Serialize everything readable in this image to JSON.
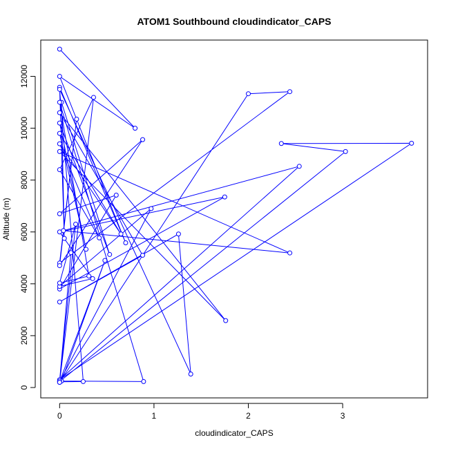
{
  "chart_data": {
    "type": "line",
    "title": "ATOM1 Southbound cloudindicator_CAPS",
    "xlabel": "cloudindicator_CAPS",
    "ylabel": "Altitude (m)",
    "xlim": [
      -0.2,
      3.9
    ],
    "ylim": [
      -400,
      13400
    ],
    "xticks": [
      0,
      1,
      2,
      3
    ],
    "yticks": [
      0,
      2000,
      4000,
      6000,
      8000,
      10000,
      12000
    ],
    "series_color": "#0000ff",
    "series": [
      {
        "marker": "open-circle",
        "x": [
          0.0,
          0.8,
          0.0,
          0.7,
          0.0,
          0.05,
          0.02,
          0.53,
          0.0,
          0.28,
          0.0,
          0.65,
          0.0,
          0.42,
          0.0,
          0.36,
          0.0,
          2.0,
          2.44,
          0.0,
          0.18,
          0.0,
          0.88,
          0.0,
          0.6,
          0.0,
          1.75,
          0.0,
          0.35,
          0.0,
          0.97,
          0.0,
          3.03,
          2.35,
          3.73,
          0.0,
          2.54,
          0.04,
          2.44,
          0.0,
          1.76,
          0.0,
          0.88,
          0.0,
          1.26,
          1.39,
          0.0,
          0.25,
          0.0,
          0.48,
          0.02,
          0.89,
          0.0,
          0.31,
          0.0,
          0.17,
          0.0,
          0.12,
          0.0
        ],
        "y": [
          13050,
          10000,
          12000,
          5580,
          11580,
          5750,
          11000,
          5130,
          10200,
          5330,
          9800,
          5920,
          9400,
          5770,
          8400,
          11190,
          200,
          11330,
          11410,
          4800,
          10350,
          4700,
          9560,
          6700,
          7420,
          3800,
          7350,
          6000,
          4200,
          3900,
          6900,
          230,
          9100,
          9410,
          9420,
          300,
          8530,
          6050,
          5190,
          9100,
          2580,
          10600,
          5100,
          3300,
          5920,
          520,
          11500,
          230,
          220,
          4900,
          250,
          230,
          11000,
          4300,
          4030,
          6300,
          250,
          5200,
          200
        ]
      }
    ]
  }
}
